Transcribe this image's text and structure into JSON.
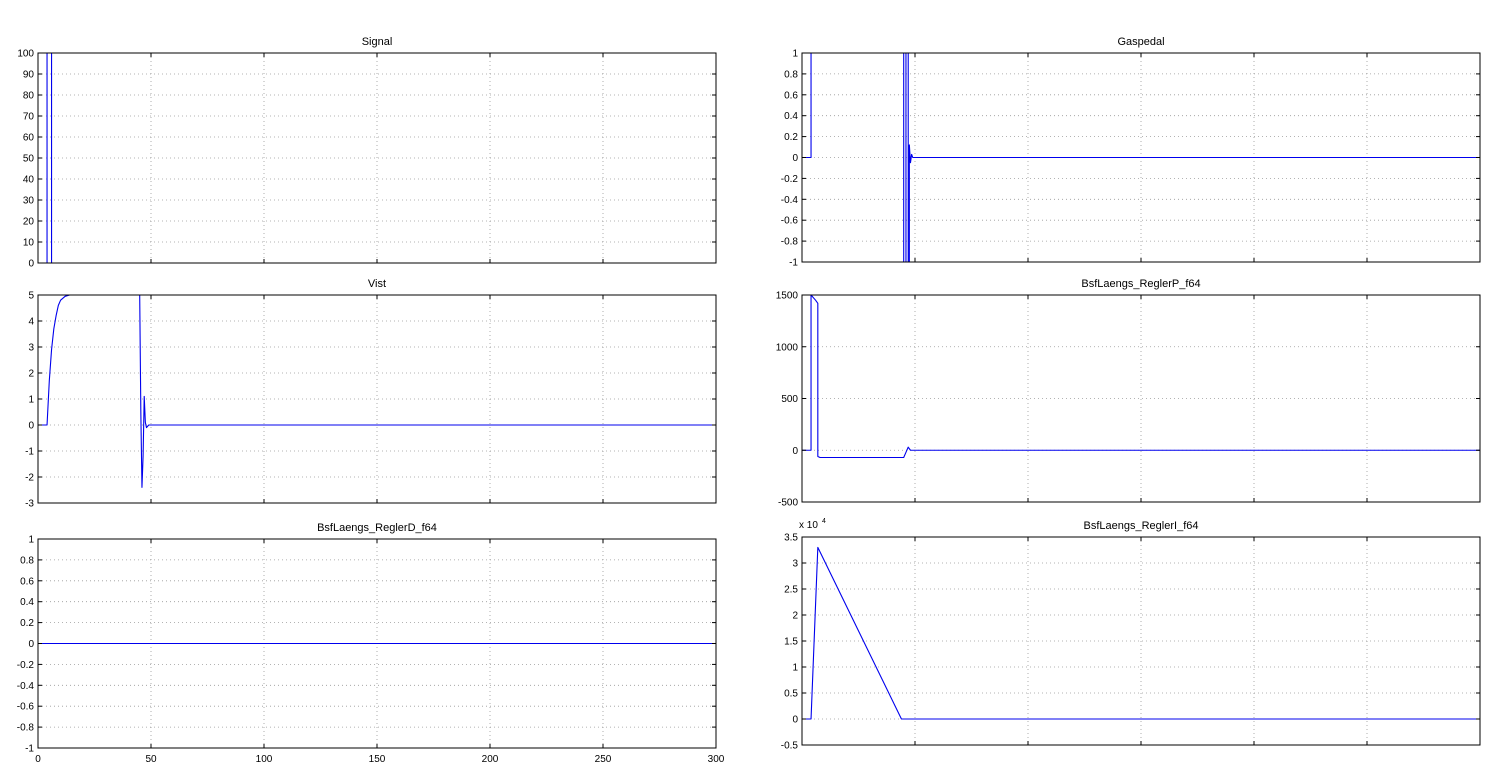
{
  "chart_data": [
    {
      "type": "line",
      "title": "Signal",
      "xlim": [
        0,
        300
      ],
      "ylim": [
        0,
        100
      ],
      "xticks": [
        0,
        50,
        100,
        150,
        200,
        250,
        300
      ],
      "yticks": [
        0,
        10,
        20,
        30,
        40,
        50,
        60,
        70,
        80,
        90,
        100
      ],
      "x_tick_labels_shown": false,
      "exponent_label": "",
      "grid": true,
      "color": "#0000ee",
      "series": [
        {
          "x": [
            0,
            4,
            4,
            6,
            6,
            300
          ],
          "y": [
            0,
            0,
            100,
            100,
            0,
            0
          ]
        }
      ]
    },
    {
      "type": "line",
      "title": "Gaspedal",
      "xlim": [
        0,
        300
      ],
      "ylim": [
        -1,
        1
      ],
      "xticks": [
        0,
        50,
        100,
        150,
        200,
        250,
        300
      ],
      "yticks": [
        -1,
        -0.8,
        -0.6,
        -0.4,
        -0.2,
        0,
        0.2,
        0.4,
        0.6,
        0.8,
        1
      ],
      "x_tick_labels_shown": false,
      "exponent_label": "",
      "grid": true,
      "color": "#0000ee",
      "series": [
        {
          "x": [
            0,
            4,
            4,
            45,
            45,
            46,
            46,
            47,
            47,
            47.5,
            47.5,
            48,
            48.5,
            49,
            50,
            300
          ],
          "y": [
            0,
            0,
            1,
            1,
            -1,
            -1,
            1,
            1,
            -1,
            -1,
            0.12,
            -0.05,
            0.03,
            0,
            0,
            0
          ]
        }
      ]
    },
    {
      "type": "line",
      "title": "Vist",
      "xlim": [
        0,
        300
      ],
      "ylim": [
        -3,
        5
      ],
      "xticks": [
        0,
        50,
        100,
        150,
        200,
        250,
        300
      ],
      "yticks": [
        -3,
        -2,
        -1,
        0,
        1,
        2,
        3,
        4,
        5
      ],
      "x_tick_labels_shown": false,
      "exponent_label": "",
      "grid": true,
      "color": "#0000ee",
      "series": [
        {
          "x": [
            0,
            4,
            5,
            6,
            7,
            8,
            9,
            10,
            12,
            14,
            20,
            45,
            45.5,
            46,
            46.5,
            47,
            47.5,
            48,
            49,
            50,
            300
          ],
          "y": [
            0,
            0,
            1.7,
            2.9,
            3.7,
            4.2,
            4.6,
            4.8,
            4.95,
            5,
            5,
            5,
            0.5,
            -2.4,
            -1.2,
            1.1,
            0.1,
            -0.1,
            0,
            0,
            0
          ]
        }
      ]
    },
    {
      "type": "line",
      "title": "BsfLaengs_ReglerP_f64",
      "xlim": [
        0,
        300
      ],
      "ylim": [
        -500,
        1500
      ],
      "xticks": [
        0,
        50,
        100,
        150,
        200,
        250,
        300
      ],
      "yticks": [
        -500,
        0,
        500,
        1000,
        1500
      ],
      "x_tick_labels_shown": false,
      "exponent_label": "",
      "grid": true,
      "color": "#0000ee",
      "series": [
        {
          "x": [
            0,
            4,
            4,
            6,
            7,
            7,
            8,
            45,
            46,
            47,
            48,
            50,
            300
          ],
          "y": [
            0,
            0,
            1500,
            1450,
            1420,
            -60,
            -70,
            -70,
            -20,
            30,
            0,
            0,
            0
          ]
        }
      ]
    },
    {
      "type": "line",
      "title": "BsfLaengs_ReglerD_f64",
      "xlim": [
        0,
        300
      ],
      "ylim": [
        -1,
        1
      ],
      "xticks": [
        0,
        50,
        100,
        150,
        200,
        250,
        300
      ],
      "x_tick_labels": [
        "0",
        "50",
        "100",
        "150",
        "200",
        "250",
        "300"
      ],
      "yticks": [
        -1,
        -0.8,
        -0.6,
        -0.4,
        -0.2,
        0,
        0.2,
        0.4,
        0.6,
        0.8,
        1
      ],
      "x_tick_labels_shown": true,
      "exponent_label": "",
      "grid": true,
      "color": "#0000ee",
      "series": [
        {
          "x": [
            0,
            300
          ],
          "y": [
            0,
            0
          ]
        }
      ]
    },
    {
      "type": "line",
      "title": "BsfLaengs_ReglerI_f64",
      "xlim": [
        0,
        300
      ],
      "ylim": [
        -0.5,
        3.5
      ],
      "xticks": [
        0,
        50,
        100,
        150,
        200,
        250,
        300
      ],
      "yticks": [
        -0.5,
        0,
        0.5,
        1,
        1.5,
        2,
        2.5,
        3,
        3.5
      ],
      "x_tick_labels_shown": false,
      "exponent_label": "x 10",
      "exponent_power": "4",
      "grid": true,
      "color": "#0000ee",
      "series": [
        {
          "x": [
            0,
            4,
            7,
            44,
            46,
            300
          ],
          "y": [
            0,
            0,
            3.3,
            0,
            0,
            0
          ]
        }
      ]
    }
  ]
}
